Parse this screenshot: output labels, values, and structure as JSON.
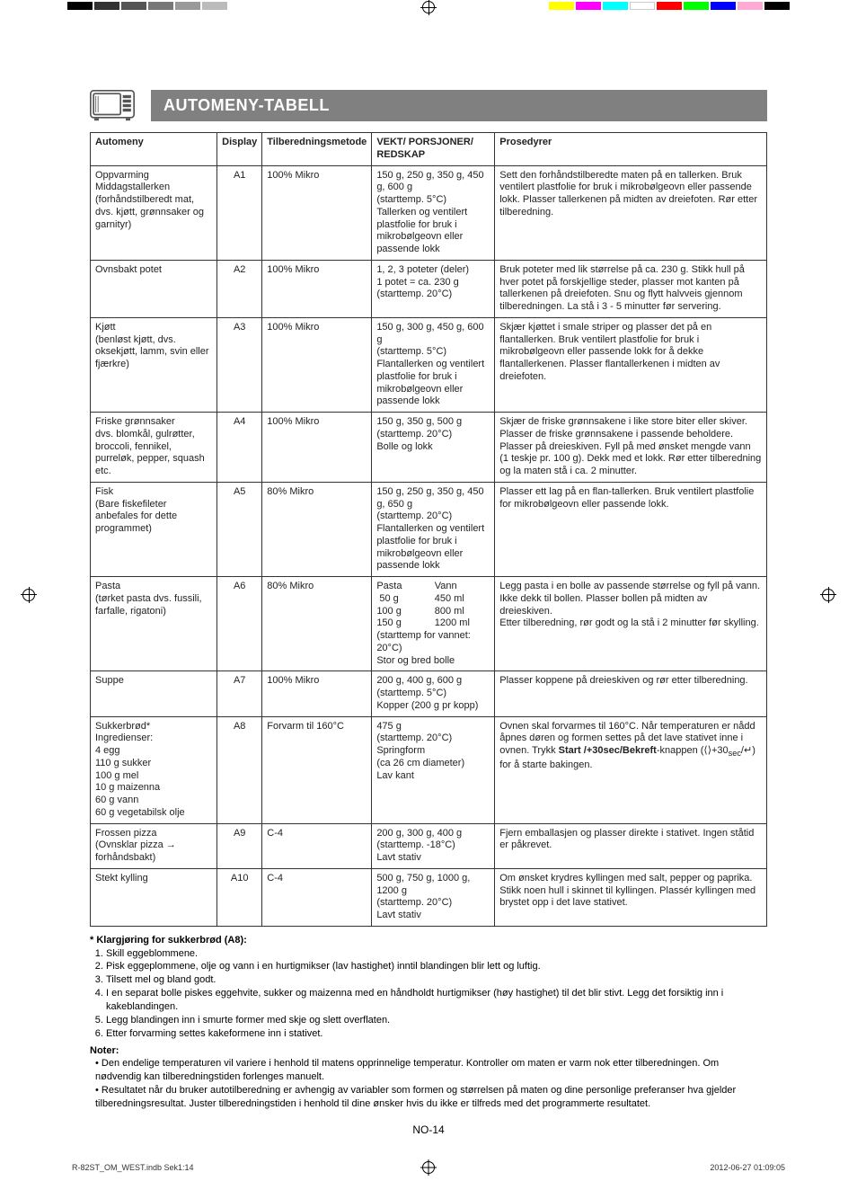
{
  "header": {
    "title": "AUTOMENY-TABELL"
  },
  "table": {
    "columns": [
      "Automeny",
      "Display",
      "Tilberedningsmetode",
      "VEKT/ PORSJONER/ REDSKAP",
      "Prosedyrer"
    ],
    "rows": [
      {
        "menu": "Oppvarming\nMiddagstallerken\n(forhåndstilberedt mat, dvs. kjøtt, grønnsaker og garnityr)",
        "display": "A1",
        "method": "100% Mikro",
        "weight": "150 g, 250 g, 350 g, 450 g, 600 g\n(starttemp. 5°C)\nTallerken og ventilert plastfolie for bruk i mikrobølgeovn eller passende lokk",
        "proc": "Sett den forhåndstilberedte maten på en tallerken. Bruk ventilert plastfolie for bruk i mikrobølgeovn eller passende lokk. Plasser tallerkenen på midten av dreiefoten. Rør etter tilberedning."
      },
      {
        "menu": "Ovnsbakt potet",
        "display": "A2",
        "method": "100% Mikro",
        "weight": "1, 2, 3 poteter (deler)\n1 potet = ca. 230 g\n(starttemp. 20°C)",
        "proc": "Bruk poteter med lik størrelse på ca. 230 g. Stikk hull på hver potet på forskjellige steder, plasser mot kanten på tallerkenen på dreiefoten. Snu og flytt halvveis gjennom tilberedningen. La stå i 3 - 5 minutter før servering."
      },
      {
        "menu": "Kjøtt\n(benløst kjøtt, dvs. oksekjøtt, lamm, svin eller fjærkre)",
        "display": "A3",
        "method": "100% Mikro",
        "weight": "150 g, 300 g, 450 g, 600 g\n(starttemp. 5°C)\nFlantallerken og ventilert plastfolie for bruk i mikrobølgeovn eller passende lokk",
        "proc": "Skjær kjøttet i smale striper og plasser det på en flantallerken. Bruk ventilert plastfolie for bruk i mikrobølgeovn eller passende lokk for å dekke flantallerkenen. Plasser flantallerkenen i midten av dreiefoten."
      },
      {
        "menu": "Friske grønnsaker\ndvs. blomkål, gulrøtter, broccoli, fennikel, purreløk, pepper, squash etc.",
        "display": "A4",
        "method": "100% Mikro",
        "weight": "150 g, 350 g, 500 g\n(starttemp. 20°C)\nBolle og lokk",
        "proc": "Skjær de friske grønnsakene i like store biter eller skiver. Plasser de friske grønnsakene i passende beholdere. Plasser på dreieskiven. Fyll på med ønsket mengde vann (1 teskje pr. 100 g). Dekk med et lokk. Rør etter tilberedning og la maten stå i ca. 2 minutter."
      },
      {
        "menu": "Fisk\n(Bare fiskefileter anbefales for dette programmet)",
        "display": "A5",
        "method": "80% Mikro",
        "weight": "150 g, 250 g, 350 g, 450 g, 650 g\n(starttemp. 20°C)\nFlantallerken og ventilert plastfolie for bruk i mikrobølgeovn eller passende lokk",
        "proc": "Plasser ett lag på en flan-tallerken. Bruk ventilert plastfolie for mikrobølgeovn eller passende lokk."
      },
      {
        "menu": "Pasta\n(tørket pasta dvs. fussili, farfalle, rigatoni)",
        "display": "A6",
        "method": "80% Mikro",
        "weight": "",
        "proc": "Legg pasta i en bolle av passende størrelse og fyll på vann. Ikke dekk til bollen. Plasser bollen på midten av dreieskiven.\nEtter tilberedning, rør godt og la stå i 2 minutter før skylling."
      },
      {
        "menu": "Suppe",
        "display": "A7",
        "method": "100% Mikro",
        "weight": "200 g, 400 g, 600 g\n(starttemp. 5°C)\nKopper (200 g pr kopp)",
        "proc": "Plasser koppene på dreieskiven og rør etter tilberedning."
      },
      {
        "menu": "Sukkerbrød*\nIngredienser:\n4 egg\n110 g sukker\n100 g mel\n10 g maizenna\n60 g vann\n60 g vegetabilsk olje",
        "display": "A8",
        "method": "Forvarm til 160°C",
        "weight": "475 g\n(starttemp. 20°C)\nSpringform\n(ca 26 cm diameter)\nLav kant",
        "proc": "Ovnen skal forvarmes til 160°C. Når temperaturen er nådd åpnes døren og formen settes på det lave stativet inne i ovnen. Trykk Start /+30sec/Bekreft-knappen (⟨⟩+30 sec /↵) for å starte bakingen."
      },
      {
        "menu": "Frossen pizza\n(Ovnsklar pizza → forhåndsbakt)",
        "display": "A9",
        "method": "C-4",
        "weight": "200 g, 300 g, 400 g\n(starttemp. -18°C)\nLavt stativ",
        "proc": "Fjern emballasjen og plasser direkte i stativet. Ingen ståtid er påkrevet."
      },
      {
        "menu": "Stekt kylling",
        "display": "A10",
        "method": "C-4",
        "weight": "500 g, 750 g, 1000 g, 1200 g\n(starttemp. 20°C)\nLavt stativ",
        "proc": "Om ønsket krydres kyllingen med salt, pepper og paprika. Stikk noen hull i skinnet til kyllingen. Plassér kyllingen med brystet opp i det lave stativet."
      }
    ]
  },
  "pasta": {
    "col1_head": "Pasta",
    "col2_head": "Vann",
    "r1a": "50 g",
    "r1b": "450 ml",
    "r2a": "100 g",
    "r2b": "800 ml",
    "r3a": "150 g",
    "r3b": "1200 ml",
    "foot1": "(starttemp for vannet: 20°C)",
    "foot2": "Stor og bred bolle"
  },
  "foot": {
    "h1": "* Klargjøring for sukkerbrød (A8):",
    "l1": "Skill eggeblommene.",
    "l2": "Pisk eggeplommene, olje og vann i en hurtigmikser (lav hastighet) inntil blandingen blir lett og luftig.",
    "l3": "Tilsett mel og bland godt.",
    "l4": "I en separat bolle piskes eggehvite, sukker og maizenna med en håndholdt hurtigmikser (høy hastighet) til det blir stivt. Legg det forsiktig inn i kakeblandingen.",
    "l5": "Legg blandingen inn i smurte former med skje og slett overflaten.",
    "l6": "Etter forvarming settes kakeformene inn i stativet.",
    "h2": "Noter:",
    "n1": "Den endelige temperaturen vil variere i henhold til matens opprinnelige temperatur. Kontroller om maten er varm nok etter tilberedningen. Om nødvendig kan tilberedningstiden forlenges manuelt.",
    "n2": "Resultatet når du bruker autotilberedning er avhengig av variabler som formen og størrelsen på maten og dine personlige preferanser hva gjelder tilberedningsresultat. Juster tilberedningstiden i henhold til dine ønsker hvis du ikke er tilfreds med det programmerte resultatet."
  },
  "pagenum": "NO-14",
  "meta": {
    "file": "R-82ST_OM_WEST.indb   Sek1:14",
    "ts": "2012-06-27   01:09:05"
  },
  "colors": {
    "left": [
      "#000",
      "#333",
      "#555",
      "#777",
      "#999",
      "#bbb"
    ],
    "right": [
      "#ffff00",
      "#ff00ff",
      "#00ffff",
      "#ffffff",
      "#ff0000",
      "#00ff00",
      "#0000ff",
      "#ffaad4",
      "#000000"
    ]
  }
}
